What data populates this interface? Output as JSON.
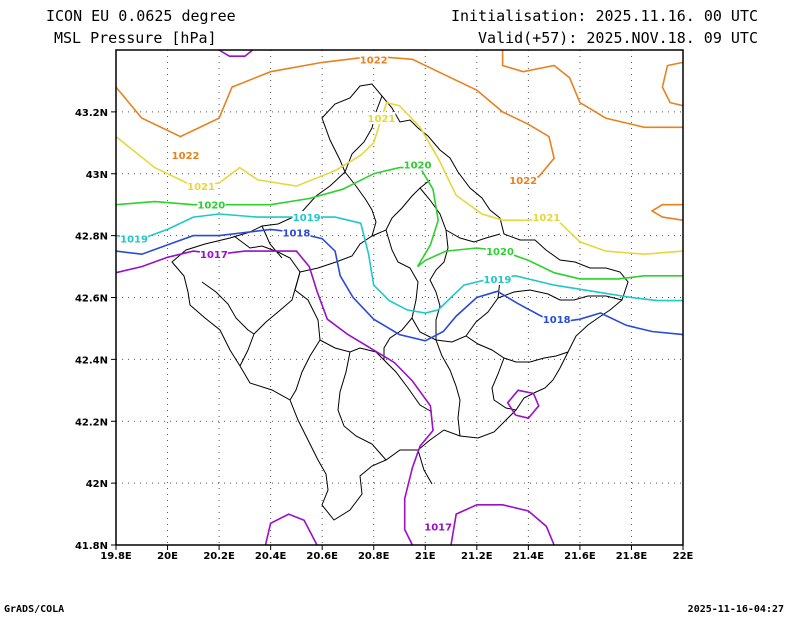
{
  "header": {
    "title_line1": "ICON EU 0.0625 degree",
    "title_line2": "MSL Pressure [hPa]",
    "init": "Initialisation: 2025.11.16. 00 UTC",
    "valid": "Valid(+57): 2025.NOV.18. 09 UTC"
  },
  "footer": {
    "left": "GrADS/COLA",
    "right": "2025-11-16-04:27"
  },
  "chart_data": {
    "type": "contour",
    "xlim": [
      19.8,
      22.0
    ],
    "ylim": [
      41.8,
      43.4
    ],
    "x_ticks": [
      {
        "v": 19.8,
        "label": "19.8E"
      },
      {
        "v": 20.0,
        "label": "20E"
      },
      {
        "v": 20.2,
        "label": "20.2E"
      },
      {
        "v": 20.4,
        "label": "20.4E"
      },
      {
        "v": 20.6,
        "label": "20.6E"
      },
      {
        "v": 20.8,
        "label": "20.8E"
      },
      {
        "v": 21.0,
        "label": "21E"
      },
      {
        "v": 21.2,
        "label": "21.2E"
      },
      {
        "v": 21.4,
        "label": "21.4E"
      },
      {
        "v": 21.6,
        "label": "21.6E"
      },
      {
        "v": 21.8,
        "label": "21.8E"
      },
      {
        "v": 22.0,
        "label": "22E"
      }
    ],
    "y_ticks": [
      {
        "v": 41.8,
        "label": "41.8N"
      },
      {
        "v": 42.0,
        "label": "42N"
      },
      {
        "v": 42.2,
        "label": "42.2N"
      },
      {
        "v": 42.4,
        "label": "42.4N"
      },
      {
        "v": 42.6,
        "label": "42.6N"
      },
      {
        "v": 42.8,
        "label": "42.8N"
      },
      {
        "v": 43.0,
        "label": "43N"
      },
      {
        "v": 43.2,
        "label": "43.2N"
      }
    ],
    "grid": "dotted",
    "isobars": [
      {
        "value": "1022",
        "color": "#e8821e",
        "lines": [
          [
            [
              19.8,
              43.28
            ],
            [
              19.9,
              43.18
            ],
            [
              20.05,
              43.12
            ],
            [
              20.2,
              43.18
            ],
            [
              20.25,
              43.28
            ],
            [
              20.4,
              43.33
            ],
            [
              20.6,
              43.36
            ],
            [
              20.8,
              43.38
            ],
            [
              20.95,
              43.37
            ],
            [
              21.05,
              43.33
            ],
            [
              21.2,
              43.27
            ],
            [
              21.3,
              43.2
            ],
            [
              21.4,
              43.16
            ],
            [
              21.48,
              43.12
            ],
            [
              21.5,
              43.05
            ],
            [
              21.44,
              42.99
            ],
            [
              21.35,
              42.98
            ]
          ],
          [
            [
              21.3,
              43.4
            ],
            [
              21.3,
              43.35
            ],
            [
              21.38,
              43.33
            ],
            [
              21.5,
              43.35
            ],
            [
              21.56,
              43.31
            ],
            [
              21.6,
              43.23
            ],
            [
              21.7,
              43.18
            ],
            [
              21.85,
              43.15
            ],
            [
              22.0,
              43.15
            ]
          ],
          [
            [
              22.0,
              43.36
            ],
            [
              21.94,
              43.35
            ],
            [
              21.92,
              43.28
            ],
            [
              21.95,
              43.23
            ],
            [
              22.0,
              43.22
            ]
          ],
          [
            [
              22.0,
              42.9
            ],
            [
              21.92,
              42.9
            ],
            [
              21.88,
              42.88
            ],
            [
              21.92,
              42.86
            ],
            [
              22.0,
              42.85
            ]
          ]
        ],
        "labels": [
          [
            20.07,
            43.06
          ],
          [
            20.8,
            43.37
          ],
          [
            21.38,
            42.98
          ]
        ]
      },
      {
        "value": "1021",
        "color": "#e6d83a",
        "lines": [
          [
            [
              19.8,
              43.12
            ],
            [
              19.95,
              43.02
            ],
            [
              20.1,
              42.96
            ],
            [
              20.2,
              42.97
            ],
            [
              20.28,
              43.02
            ],
            [
              20.35,
              42.98
            ],
            [
              20.5,
              42.96
            ],
            [
              20.65,
              43.01
            ],
            [
              20.75,
              43.06
            ],
            [
              20.8,
              43.1
            ],
            [
              20.83,
              43.18
            ],
            [
              20.85,
              43.23
            ],
            [
              20.9,
              43.22
            ],
            [
              20.98,
              43.15
            ],
            [
              21.05,
              43.05
            ],
            [
              21.12,
              42.93
            ],
            [
              21.22,
              42.87
            ],
            [
              21.3,
              42.85
            ],
            [
              21.4,
              42.85
            ],
            [
              21.5,
              42.86
            ],
            [
              21.55,
              42.82
            ],
            [
              21.6,
              42.78
            ],
            [
              21.7,
              42.75
            ],
            [
              21.85,
              42.74
            ],
            [
              22.0,
              42.75
            ]
          ]
        ],
        "labels": [
          [
            20.13,
            42.96
          ],
          [
            20.83,
            43.18
          ],
          [
            21.47,
            42.86
          ]
        ]
      },
      {
        "value": "1020",
        "color": "#2bd22b",
        "lines": [
          [
            [
              19.8,
              42.9
            ],
            [
              19.95,
              42.91
            ],
            [
              20.1,
              42.9
            ],
            [
              20.25,
              42.9
            ],
            [
              20.4,
              42.9
            ],
            [
              20.55,
              42.92
            ],
            [
              20.68,
              42.95
            ],
            [
              20.8,
              43.0
            ],
            [
              20.9,
              43.02
            ],
            [
              20.98,
              43.02
            ],
            [
              21.03,
              42.95
            ],
            [
              21.05,
              42.85
            ],
            [
              21.02,
              42.77
            ],
            [
              20.97,
              42.7
            ],
            [
              21.0,
              42.72
            ],
            [
              21.08,
              42.75
            ],
            [
              21.2,
              42.76
            ],
            [
              21.3,
              42.75
            ],
            [
              21.4,
              42.72
            ],
            [
              21.5,
              42.68
            ],
            [
              21.6,
              42.66
            ],
            [
              21.75,
              42.66
            ],
            [
              21.85,
              42.67
            ],
            [
              22.0,
              42.67
            ]
          ]
        ],
        "labels": [
          [
            20.17,
            42.9
          ],
          [
            20.97,
            43.03
          ],
          [
            21.29,
            42.75
          ]
        ]
      },
      {
        "value": "1019",
        "color": "#1ec8c8",
        "lines": [
          [
            [
              19.8,
              42.8
            ],
            [
              19.9,
              42.79
            ],
            [
              20.0,
              42.82
            ],
            [
              20.1,
              42.86
            ],
            [
              20.2,
              42.87
            ],
            [
              20.35,
              42.86
            ],
            [
              20.5,
              42.86
            ],
            [
              20.65,
              42.86
            ],
            [
              20.75,
              42.84
            ],
            [
              20.78,
              42.74
            ],
            [
              20.8,
              42.64
            ],
            [
              20.86,
              42.59
            ],
            [
              20.93,
              42.56
            ],
            [
              21.0,
              42.55
            ],
            [
              21.05,
              42.56
            ],
            [
              21.1,
              42.6
            ],
            [
              21.15,
              42.64
            ],
            [
              21.25,
              42.66
            ],
            [
              21.35,
              42.67
            ],
            [
              21.5,
              42.64
            ],
            [
              21.65,
              42.62
            ],
            [
              21.8,
              42.6
            ],
            [
              21.9,
              42.59
            ],
            [
              22.0,
              42.59
            ]
          ]
        ],
        "labels": [
          [
            19.87,
            42.79
          ],
          [
            20.54,
            42.86
          ],
          [
            21.28,
            42.66
          ]
        ]
      },
      {
        "value": "1018",
        "color": "#2a4ad8",
        "lines": [
          [
            [
              19.8,
              42.75
            ],
            [
              19.9,
              42.74
            ],
            [
              20.0,
              42.77
            ],
            [
              20.1,
              42.8
            ],
            [
              20.2,
              42.8
            ],
            [
              20.3,
              42.81
            ],
            [
              20.4,
              42.82
            ],
            [
              20.5,
              42.81
            ],
            [
              20.6,
              42.79
            ],
            [
              20.65,
              42.75
            ],
            [
              20.67,
              42.67
            ],
            [
              20.72,
              42.6
            ],
            [
              20.8,
              42.53
            ],
            [
              20.9,
              42.48
            ],
            [
              21.0,
              42.46
            ],
            [
              21.07,
              42.49
            ],
            [
              21.12,
              42.54
            ],
            [
              21.2,
              42.6
            ],
            [
              21.28,
              42.62
            ],
            [
              21.36,
              42.58
            ],
            [
              21.45,
              42.54
            ],
            [
              21.52,
              42.52
            ],
            [
              21.6,
              42.53
            ],
            [
              21.68,
              42.55
            ],
            [
              21.78,
              42.51
            ],
            [
              21.88,
              42.49
            ],
            [
              22.0,
              42.48
            ]
          ]
        ],
        "labels": [
          [
            20.5,
            42.81
          ],
          [
            21.51,
            42.53
          ]
        ]
      },
      {
        "value": "1017",
        "color": "#9a0fc8",
        "lines": [
          [
            [
              19.8,
              42.68
            ],
            [
              19.9,
              42.7
            ],
            [
              20.0,
              42.73
            ],
            [
              20.1,
              42.75
            ],
            [
              20.2,
              42.74
            ],
            [
              20.3,
              42.75
            ],
            [
              20.4,
              42.75
            ],
            [
              20.5,
              42.75
            ],
            [
              20.55,
              42.7
            ],
            [
              20.58,
              42.62
            ],
            [
              20.62,
              42.53
            ],
            [
              20.7,
              42.48
            ],
            [
              20.8,
              42.43
            ],
            [
              20.88,
              42.39
            ],
            [
              20.95,
              42.33
            ],
            [
              21.02,
              42.25
            ],
            [
              21.03,
              42.17
            ],
            [
              20.98,
              42.12
            ],
            [
              20.95,
              42.05
            ],
            [
              20.92,
              41.95
            ],
            [
              20.92,
              41.85
            ],
            [
              20.95,
              41.8
            ]
          ],
          [
            [
              20.38,
              41.8
            ],
            [
              20.4,
              41.87
            ],
            [
              20.47,
              41.9
            ],
            [
              20.53,
              41.88
            ],
            [
              20.58,
              41.8
            ]
          ],
          [
            [
              21.1,
              41.8
            ],
            [
              21.12,
              41.9
            ],
            [
              21.2,
              41.93
            ],
            [
              21.3,
              41.93
            ],
            [
              21.4,
              41.91
            ],
            [
              21.47,
              41.86
            ],
            [
              21.5,
              41.8
            ]
          ],
          [
            [
              21.35,
              42.22
            ],
            [
              21.32,
              42.26
            ],
            [
              21.36,
              42.3
            ],
            [
              21.42,
              42.29
            ],
            [
              21.44,
              42.25
            ],
            [
              21.4,
              42.21
            ],
            [
              21.35,
              42.22
            ]
          ],
          [
            [
              20.2,
              43.4
            ],
            [
              20.24,
              43.38
            ],
            [
              20.3,
              43.38
            ],
            [
              20.33,
              43.4
            ]
          ]
        ],
        "labels": [
          [
            20.18,
            42.74
          ],
          [
            21.05,
            41.86
          ]
        ]
      }
    ]
  }
}
